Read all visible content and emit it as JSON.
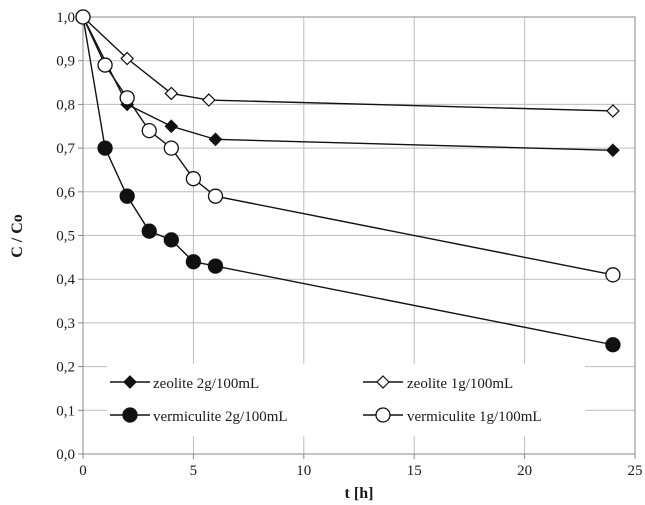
{
  "chart_data": {
    "type": "line",
    "xlabel": "t [h]",
    "ylabel": "C / Co",
    "xlim": [
      0,
      25
    ],
    "ylim": [
      0,
      1.0
    ],
    "x_ticks": [
      "0",
      "5",
      "10",
      "15",
      "20",
      "25"
    ],
    "y_ticks": [
      "0,0",
      "0,1",
      "0,2",
      "0,3",
      "0,4",
      "0,5",
      "0,6",
      "0,7",
      "0,8",
      "0,9",
      "1,0"
    ],
    "grid": true,
    "legend_position": "bottom-left",
    "series": [
      {
        "name": "zeolite 2g/100mL",
        "marker": "filled-diamond",
        "color": "#111111",
        "points": [
          [
            0,
            1.0
          ],
          [
            2,
            0.8
          ],
          [
            4,
            0.75
          ],
          [
            6,
            0.72
          ],
          [
            24,
            0.695
          ]
        ]
      },
      {
        "name": "zeolite 1g/100mL",
        "marker": "open-diamond",
        "color": "#111111",
        "points": [
          [
            0,
            1.0
          ],
          [
            2,
            0.905
          ],
          [
            4,
            0.825
          ],
          [
            5.7,
            0.81
          ],
          [
            24,
            0.785
          ]
        ]
      },
      {
        "name": "vermiculite 2g/100mL",
        "marker": "filled-circle",
        "color": "#111111",
        "points": [
          [
            0,
            1.0
          ],
          [
            1,
            0.7
          ],
          [
            2,
            0.59
          ],
          [
            3,
            0.51
          ],
          [
            4,
            0.49
          ],
          [
            5,
            0.44
          ],
          [
            6,
            0.43
          ],
          [
            24,
            0.25
          ]
        ]
      },
      {
        "name": "vermiculite 1g/100mL",
        "marker": "open-circle",
        "color": "#111111",
        "points": [
          [
            0,
            1.0
          ],
          [
            1,
            0.89
          ],
          [
            2,
            0.815
          ],
          [
            3,
            0.74
          ],
          [
            4,
            0.7
          ],
          [
            5,
            0.63
          ],
          [
            6,
            0.59
          ],
          [
            24,
            0.41
          ]
        ]
      }
    ]
  }
}
